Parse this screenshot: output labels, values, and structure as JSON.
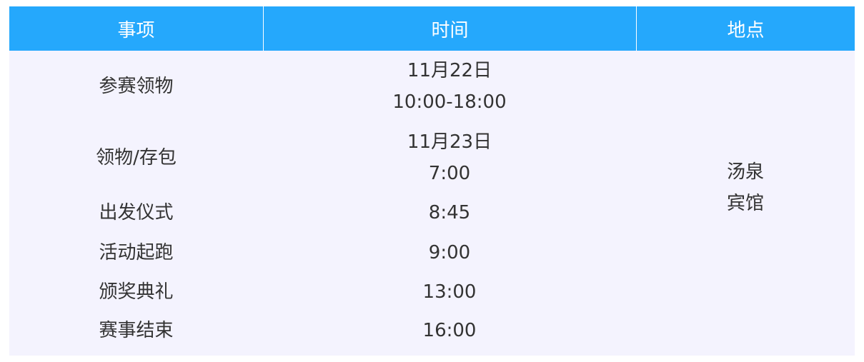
{
  "header": {
    "event": "事项",
    "time": "时间",
    "place": "地点"
  },
  "colors": {
    "header_bg": "#25A8FC",
    "body_bg": "#F4F3FE"
  },
  "rows": [
    {
      "event": "参赛领物",
      "time_line1": "11月22日",
      "time_line2": "10:00-18:00"
    },
    {
      "event": "领物/存包",
      "time_line1": "11月23日",
      "time_line2": "7:00"
    },
    {
      "event": "出发仪式",
      "time_line1": "8:45"
    },
    {
      "event": "活动起跑",
      "time_line1": "9:00"
    },
    {
      "event": "颁奖典礼",
      "time_line1": "13:00"
    },
    {
      "event": "赛事结束",
      "time_line1": "16:00"
    }
  ],
  "place": {
    "line1": "汤泉",
    "line2": "宾馆"
  }
}
